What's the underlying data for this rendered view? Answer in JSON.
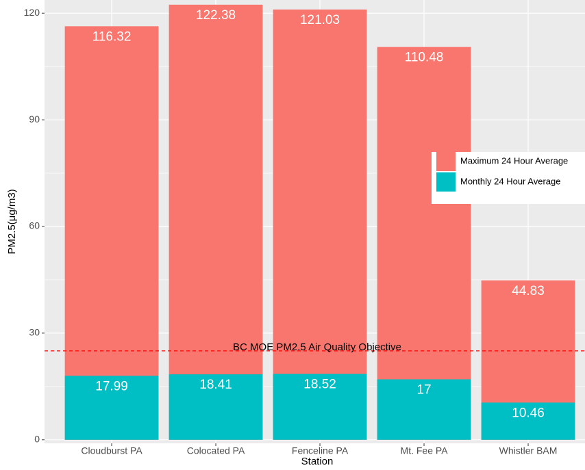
{
  "chart_data": {
    "type": "bar",
    "mode": "overlap",
    "x_label": "Station",
    "y_label": "PM2.5(μg/m3)",
    "categories": [
      "Cloudburst PA",
      "Colocated PA",
      "Fenceline PA",
      "Mt. Fee PA",
      "Whistler BAM"
    ],
    "series": [
      {
        "name": "Maximum 24 Hour Average",
        "color": "#f8766d",
        "values": [
          116.32,
          122.38,
          121.03,
          110.48,
          44.83
        ]
      },
      {
        "name": "Monthly 24 Hour Average",
        "color": "#00bfc4",
        "values": [
          17.99,
          18.41,
          18.52,
          17,
          10.46
        ]
      }
    ],
    "ylim": [
      -1,
      123.7
    ],
    "yticks": [
      0,
      30,
      60,
      90,
      120
    ],
    "grid": true,
    "legend": "right",
    "reference_line": {
      "value": 25,
      "label": "BC MOE PM2.5 Air Quality Objective",
      "color": "#ff0000"
    }
  }
}
